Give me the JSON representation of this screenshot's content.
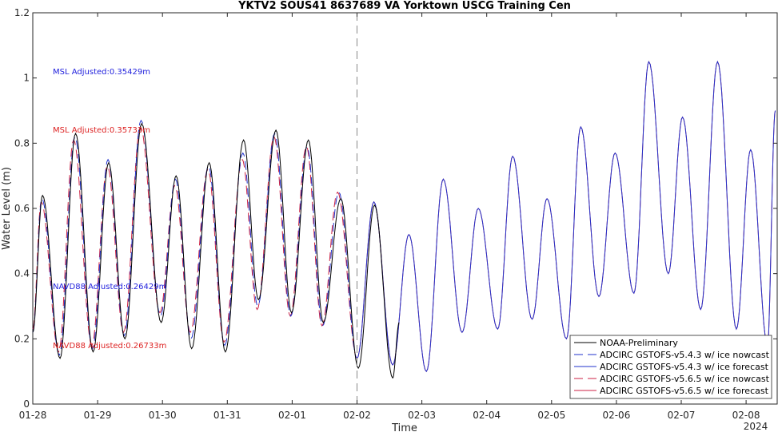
{
  "chart_data": {
    "type": "line",
    "title": "YKTV2 SOUS41 8637689 VA Yorktown USCG Training Cen",
    "xlabel": "Time",
    "ylabel": "Water Level (m)",
    "x_tick_labels": [
      "01-28",
      "01-29",
      "01-30",
      "01-31",
      "02-01",
      "02-02",
      "02-03",
      "02-04",
      "02-05",
      "02-06",
      "02-07",
      "02-08"
    ],
    "x_year_label": "2024",
    "xlim_days": [
      0,
      11.45
    ],
    "ylim": [
      0,
      1.2
    ],
    "y_ticks": [
      0,
      0.2,
      0.4,
      0.6,
      0.8,
      1,
      1.2
    ],
    "grid": false,
    "nowcast_boundary_label": "02-02",
    "annotations": [
      {
        "text": "MSL Adjusted:0.35429m",
        "color": "#2222dd"
      },
      {
        "text": "MSL Adjusted:0.35733m",
        "color": "#dd2222"
      },
      {
        "text": "NAVD88 Adjusted:0.26429m",
        "color": "#2222dd"
      },
      {
        "text": "NAVD88 Adjusted:0.26733m",
        "color": "#dd2222"
      }
    ],
    "legend_position": "bottom-right",
    "series": [
      {
        "name": "NOAA-Preliminary",
        "color": "#000000",
        "dash": "solid",
        "x_range": [
          0,
          5.65
        ],
        "extrema": [
          [
            0,
            0.22
          ],
          [
            0.15,
            0.64
          ],
          [
            0.42,
            0.14
          ],
          [
            0.66,
            0.83
          ],
          [
            0.93,
            0.16
          ],
          [
            1.17,
            0.74
          ],
          [
            1.42,
            0.2
          ],
          [
            1.68,
            0.86
          ],
          [
            1.98,
            0.25
          ],
          [
            2.21,
            0.7
          ],
          [
            2.45,
            0.17
          ],
          [
            2.72,
            0.74
          ],
          [
            2.97,
            0.16
          ],
          [
            3.25,
            0.81
          ],
          [
            3.48,
            0.32
          ],
          [
            3.75,
            0.84
          ],
          [
            3.99,
            0.28
          ],
          [
            4.25,
            0.81
          ],
          [
            4.48,
            0.25
          ],
          [
            4.75,
            0.63
          ],
          [
            5.02,
            0.11
          ],
          [
            5.27,
            0.61
          ],
          [
            5.55,
            0.08
          ],
          [
            5.65,
            0.25
          ]
        ]
      },
      {
        "name": "ADCIRC GSTOFS-v5.4.3 w/ ice nowcast",
        "color": "#2233cc",
        "dash": "long",
        "x_range": [
          0,
          5.0
        ],
        "extrema": [
          [
            0,
            0.22
          ],
          [
            0.14,
            0.63
          ],
          [
            0.41,
            0.15
          ],
          [
            0.65,
            0.82
          ],
          [
            0.92,
            0.17
          ],
          [
            1.16,
            0.75
          ],
          [
            1.41,
            0.21
          ],
          [
            1.67,
            0.87
          ],
          [
            1.97,
            0.27
          ],
          [
            2.2,
            0.69
          ],
          [
            2.44,
            0.2
          ],
          [
            2.71,
            0.73
          ],
          [
            2.96,
            0.18
          ],
          [
            3.24,
            0.77
          ],
          [
            3.47,
            0.3
          ],
          [
            3.73,
            0.83
          ],
          [
            3.98,
            0.27
          ],
          [
            4.23,
            0.79
          ],
          [
            4.47,
            0.24
          ],
          [
            4.72,
            0.65
          ],
          [
            5.0,
            0.14
          ]
        ]
      },
      {
        "name": "ADCIRC GSTOFS-v5.4.3 w/ ice forecast",
        "color": "#2233cc",
        "dash": "solid",
        "x_range": [
          5.0,
          11.45
        ],
        "extrema": [
          [
            5.0,
            0.14
          ],
          [
            5.26,
            0.62
          ],
          [
            5.55,
            0.12
          ],
          [
            5.8,
            0.52
          ],
          [
            6.07,
            0.1
          ],
          [
            6.33,
            0.69
          ],
          [
            6.62,
            0.22
          ],
          [
            6.87,
            0.6
          ],
          [
            7.17,
            0.23
          ],
          [
            7.4,
            0.76
          ],
          [
            7.7,
            0.26
          ],
          [
            7.93,
            0.63
          ],
          [
            8.23,
            0.2
          ],
          [
            8.45,
            0.85
          ],
          [
            8.73,
            0.33
          ],
          [
            8.98,
            0.77
          ],
          [
            9.27,
            0.34
          ],
          [
            9.5,
            1.05
          ],
          [
            9.8,
            0.4
          ],
          [
            10.02,
            0.88
          ],
          [
            10.3,
            0.29
          ],
          [
            10.56,
            1.05
          ],
          [
            10.85,
            0.23
          ],
          [
            11.07,
            0.78
          ],
          [
            11.33,
            0.18
          ],
          [
            11.45,
            0.9
          ]
        ]
      },
      {
        "name": "ADCIRC GSTOFS-v5.6.5 w/ ice nowcast",
        "color": "#cc2244",
        "dash": "long",
        "x_range": [
          0,
          5.0
        ],
        "extrema": [
          [
            0,
            0.23
          ],
          [
            0.13,
            0.62
          ],
          [
            0.4,
            0.16
          ],
          [
            0.63,
            0.81
          ],
          [
            0.91,
            0.18
          ],
          [
            1.15,
            0.73
          ],
          [
            1.4,
            0.22
          ],
          [
            1.66,
            0.85
          ],
          [
            1.96,
            0.28
          ],
          [
            2.19,
            0.67
          ],
          [
            2.43,
            0.22
          ],
          [
            2.7,
            0.72
          ],
          [
            2.95,
            0.19
          ],
          [
            3.23,
            0.75
          ],
          [
            3.46,
            0.29
          ],
          [
            3.72,
            0.82
          ],
          [
            3.97,
            0.27
          ],
          [
            4.22,
            0.79
          ],
          [
            4.46,
            0.24
          ],
          [
            4.7,
            0.65
          ],
          [
            5.0,
            0.14
          ]
        ]
      },
      {
        "name": "ADCIRC GSTOFS-v5.6.5 w/ ice forecast",
        "color": "#cc2244",
        "dash": "solid",
        "x_range": [
          5.0,
          11.45
        ],
        "extrema": [
          [
            5.0,
            0.14
          ],
          [
            5.26,
            0.62
          ],
          [
            5.55,
            0.12
          ],
          [
            5.8,
            0.52
          ],
          [
            6.07,
            0.1
          ],
          [
            6.33,
            0.69
          ],
          [
            6.62,
            0.22
          ],
          [
            6.87,
            0.6
          ],
          [
            7.17,
            0.23
          ],
          [
            7.4,
            0.76
          ],
          [
            7.7,
            0.26
          ],
          [
            7.93,
            0.63
          ],
          [
            8.23,
            0.2
          ],
          [
            8.45,
            0.85
          ],
          [
            8.73,
            0.33
          ],
          [
            8.98,
            0.77
          ],
          [
            9.27,
            0.34
          ],
          [
            9.5,
            1.05
          ],
          [
            9.8,
            0.4
          ],
          [
            10.02,
            0.88
          ],
          [
            10.3,
            0.29
          ],
          [
            10.56,
            1.05
          ],
          [
            10.85,
            0.23
          ],
          [
            11.07,
            0.78
          ],
          [
            11.33,
            0.18
          ],
          [
            11.45,
            0.9
          ]
        ]
      }
    ]
  }
}
